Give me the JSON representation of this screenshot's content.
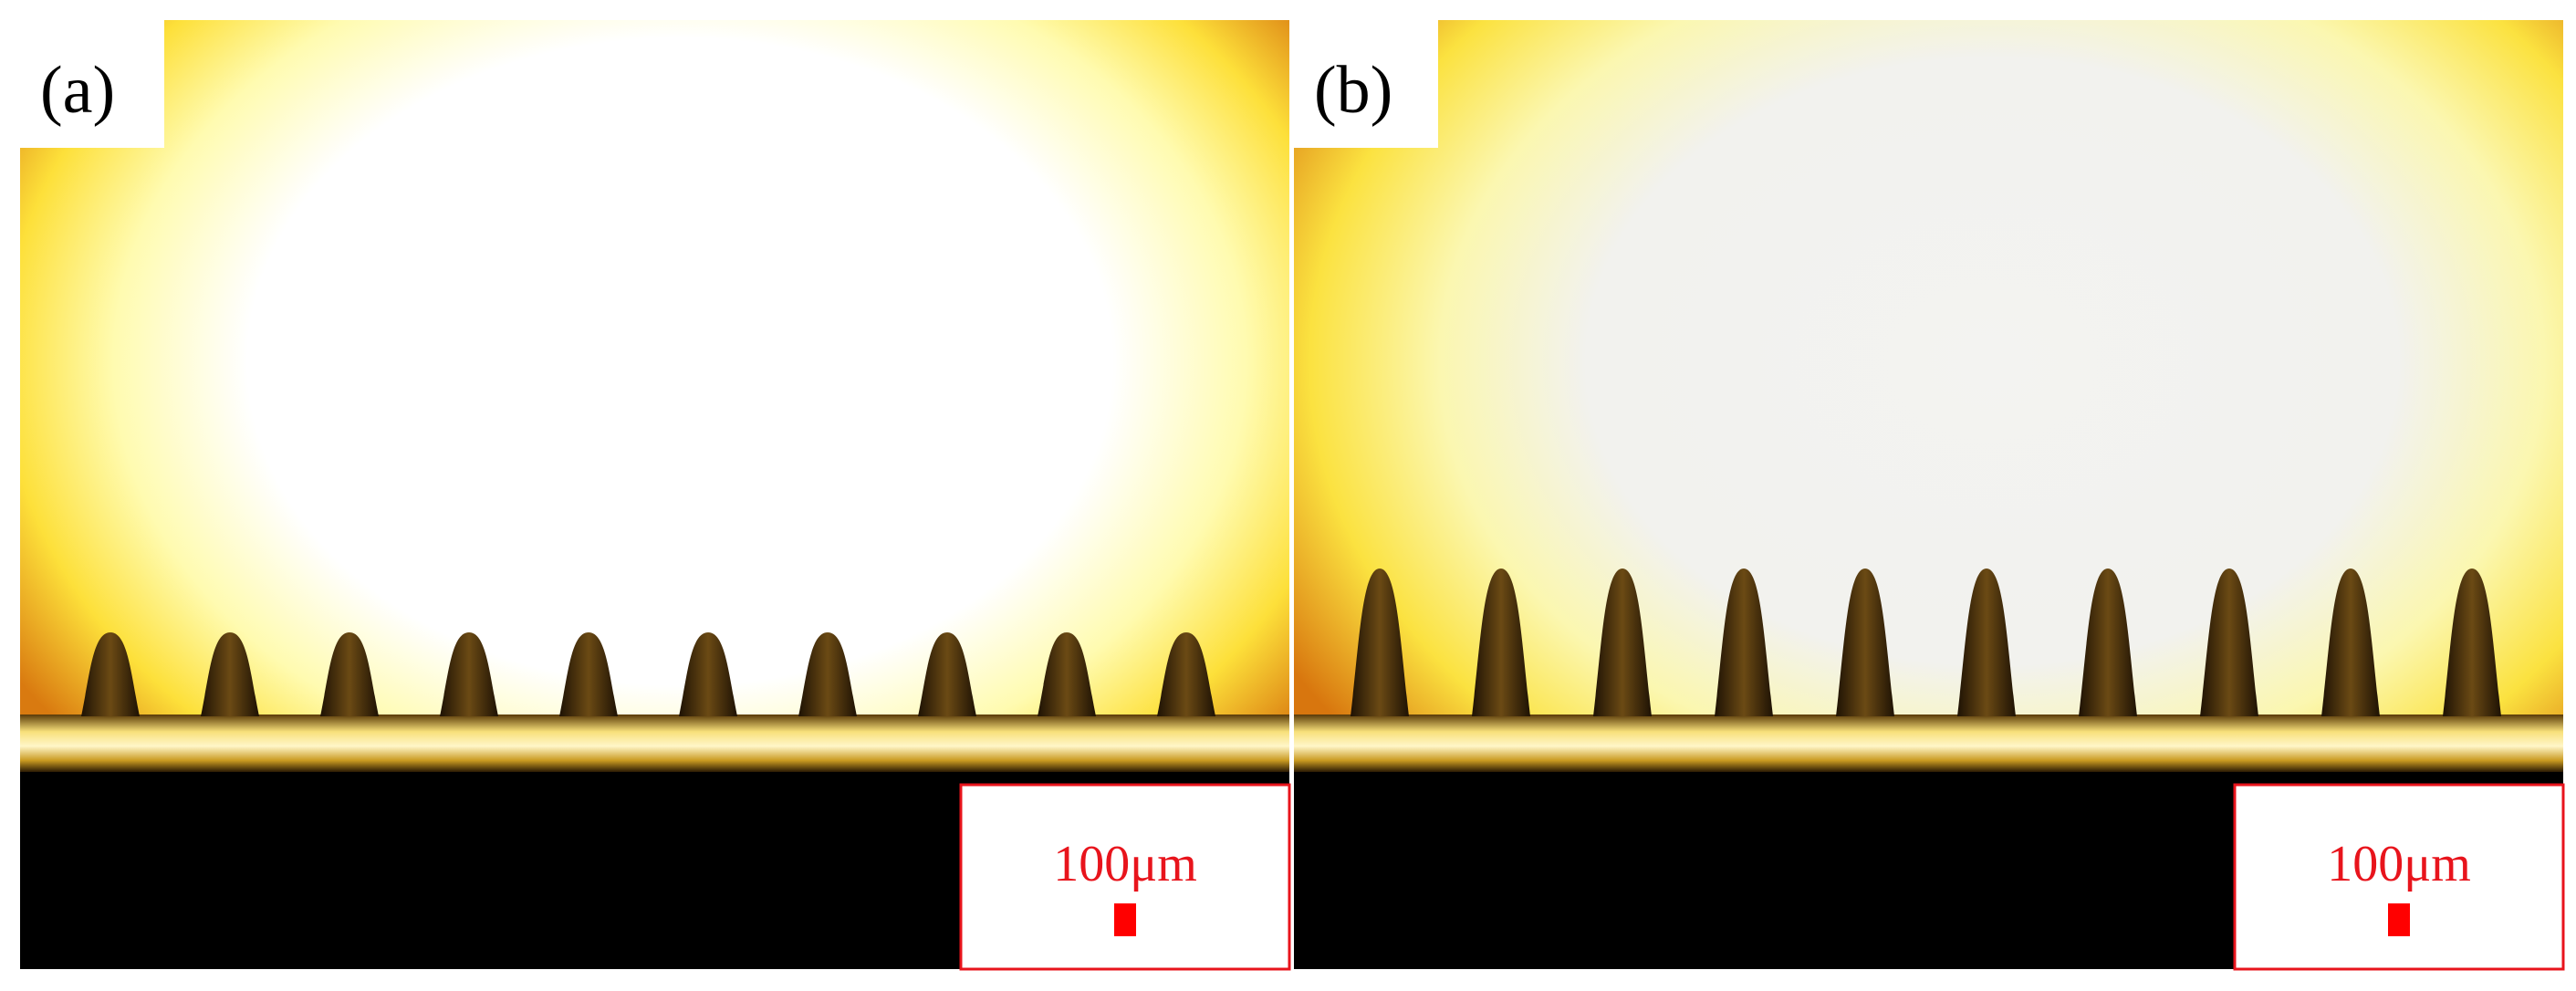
{
  "panels": [
    {
      "label": "(a)",
      "scale_bar": "100μm"
    },
    {
      "label": "(b)",
      "scale_bar": "100μm"
    }
  ]
}
